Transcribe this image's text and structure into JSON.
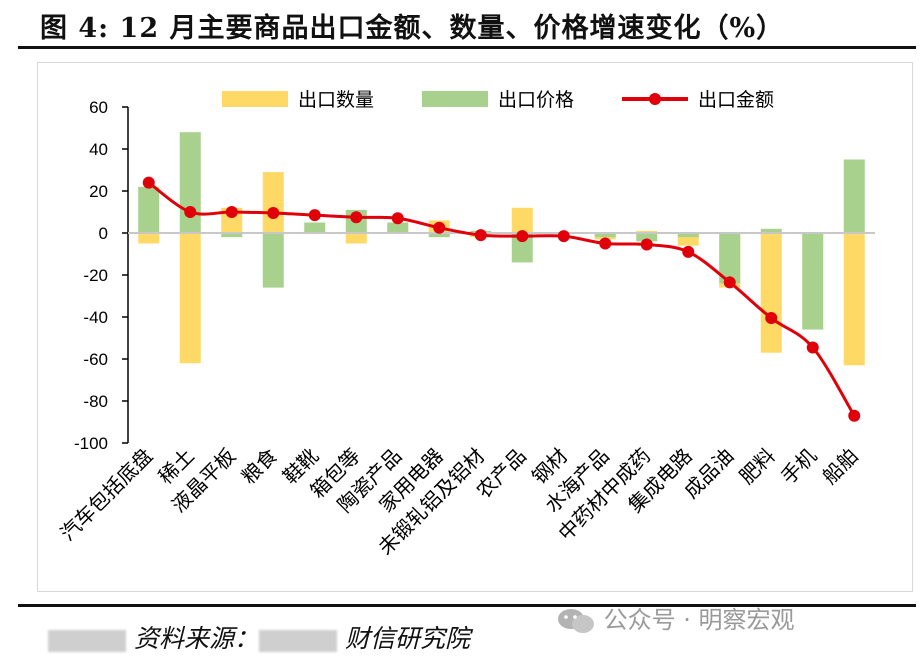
{
  "title": "图 4: 12 月主要商品出口金额、数量、价格增速变化（%）",
  "source": {
    "prefix": "资料来源：",
    "org": "财信研究院"
  },
  "watermark": "公众号 · 明察宏观",
  "colors": {
    "quantity": "#FFD966",
    "price": "#A9D18E",
    "amount": "#E0000A"
  },
  "chart_data": {
    "type": "bar",
    "title": "",
    "xlabel": "",
    "ylabel": "",
    "ylim": [
      -100,
      60
    ],
    "yticks": [
      60,
      40,
      20,
      0,
      -20,
      -40,
      -60,
      -80,
      -100
    ],
    "legend": "top",
    "grid": false,
    "categories": [
      "汽车包括底盘",
      "稀土",
      "液晶平板",
      "粮食",
      "鞋靴",
      "箱包等",
      "陶瓷产品",
      "家用电器",
      "未锻轧铝及铝材",
      "农产品",
      "钢材",
      "水海产品",
      "中药材中成药",
      "集成电路",
      "成品油",
      "肥料",
      "手机",
      "船舶"
    ],
    "series": [
      {
        "name": "出口数量",
        "type": "bar",
        "values": [
          -5,
          -62,
          12,
          29,
          2,
          -5,
          3,
          6,
          -2,
          12,
          0,
          -3,
          1,
          -6,
          -26,
          -57,
          -4,
          -63
        ]
      },
      {
        "name": "出口价格",
        "type": "bar",
        "values": [
          22,
          48,
          -2,
          -26,
          5,
          11,
          5,
          -2,
          1,
          -14,
          0,
          -2,
          -4,
          -2,
          -24,
          2,
          -46,
          35
        ]
      },
      {
        "name": "出口金额",
        "type": "line",
        "values": [
          24,
          10,
          10,
          9.5,
          8.5,
          7.5,
          7,
          2.5,
          -1,
          -1.5,
          -1.5,
          -5,
          -5.5,
          -9,
          -23.5,
          -40.5,
          -54.5,
          -87
        ]
      }
    ]
  }
}
